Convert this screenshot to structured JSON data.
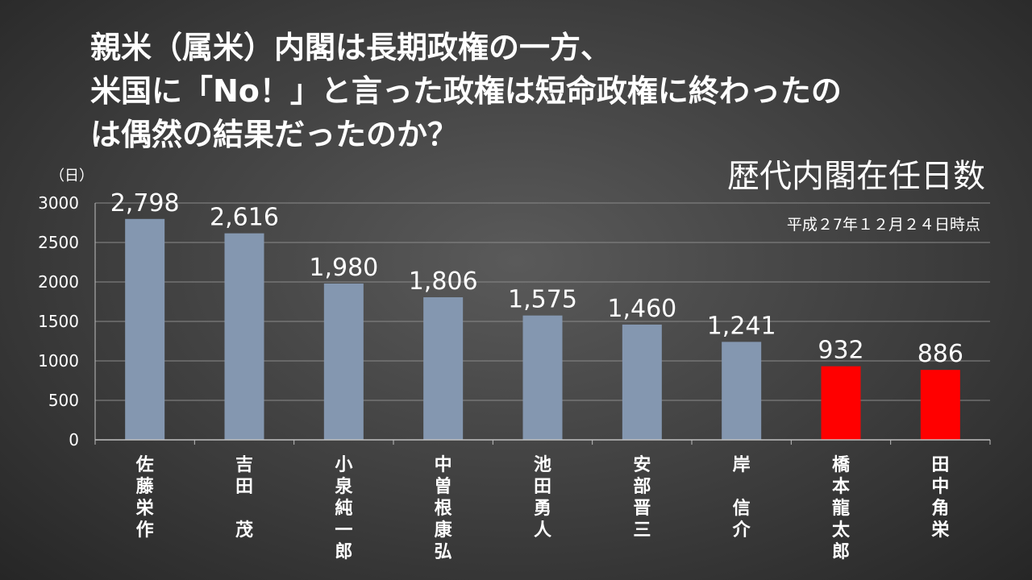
{
  "headline": {
    "line1": "親米（属米）内閣は長期政権の一方、",
    "line2": "米国に「No！」と言った政権は短命政権に終わったの",
    "line3": "は偶然の結果だったのか？"
  },
  "chart_data": {
    "type": "bar",
    "title": "歴代内閣在任日数",
    "note": "平成２7年１２月２４日時点",
    "ylabel": "（日）",
    "xlabel": "",
    "ylim": [
      0,
      3000
    ],
    "yticks": [
      0,
      500,
      1000,
      1500,
      2000,
      2500,
      3000
    ],
    "grid": true,
    "categories": [
      "佐藤栄作",
      "吉田　茂",
      "小泉純一郎",
      "中曽根康弘",
      "池田勇人",
      "安部晋三",
      "岸　信介",
      "橋本龍太郎",
      "田中角栄"
    ],
    "values": [
      2798,
      2616,
      1980,
      1806,
      1575,
      1460,
      1241,
      932,
      886
    ],
    "value_labels": [
      "2,798",
      "2,616",
      "1,980",
      "1,806",
      "1,575",
      "1,460",
      "1,241",
      "932",
      "886"
    ],
    "colors": {
      "default_bar": "#8497b0",
      "highlight_bar": "#ff0000",
      "highlighted": [
        "橋本龍太郎",
        "田中角栄"
      ]
    }
  }
}
